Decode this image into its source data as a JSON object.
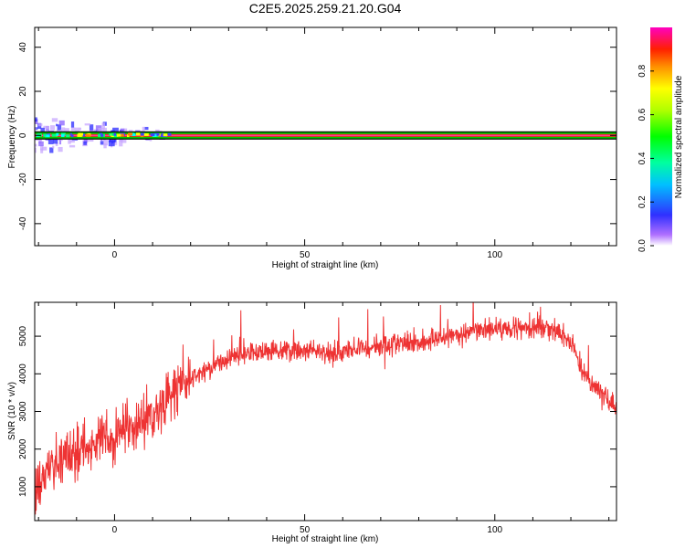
{
  "title": "C2E5.2025.259.21.20.G04",
  "chart_data": [
    {
      "type": "heatmap",
      "xlabel": "Height of straight line (km)",
      "ylabel": "Frequency (Hz)",
      "xlim": [
        -21,
        132
      ],
      "ylim": [
        -50,
        49
      ],
      "xticks": [
        0,
        50,
        100
      ],
      "yticks": [
        -40,
        -20,
        0,
        20,
        40
      ],
      "colorbar": {
        "label": "Normalized spectral amplitude",
        "range": [
          0,
          1
        ],
        "ticks": [
          "0.0",
          "0.2",
          "0.4",
          "0.6",
          "0.8"
        ]
      },
      "ridge": {
        "frequency": 0,
        "x_range": [
          -21,
          132
        ],
        "core_amplitude": 0.95,
        "noise_extent_x": [
          -21,
          14
        ],
        "noise_peak_frequency_spread": 5
      }
    },
    {
      "type": "line",
      "xlabel": "Height of straight line (km)",
      "ylabel": "SNR (10 * v/v)",
      "xlim": [
        -21,
        132
      ],
      "ylim": [
        100,
        5900
      ],
      "xticks": [
        0,
        50,
        100
      ],
      "yticks": [
        1000,
        2000,
        3000,
        4000,
        5000
      ],
      "color": "#ee3333",
      "series": [
        {
          "x": [
            -21,
            -18,
            -15,
            -12,
            -9,
            -6,
            -3,
            0,
            3,
            6,
            9,
            12,
            15,
            18,
            21,
            24,
            27,
            30,
            35,
            40,
            45,
            50,
            55,
            60,
            65,
            70,
            75,
            80,
            85,
            90,
            95,
            100,
            105,
            110,
            115,
            118,
            121,
            123,
            126,
            129,
            132
          ],
          "values": [
            900,
            1300,
            1600,
            1800,
            2000,
            2100,
            2200,
            2300,
            2550,
            2700,
            2900,
            3100,
            3400,
            3700,
            3900,
            4100,
            4250,
            4400,
            4550,
            4600,
            4650,
            4600,
            4550,
            4600,
            4700,
            4750,
            4800,
            4850,
            4950,
            5050,
            5100,
            5200,
            5250,
            5250,
            5200,
            5000,
            4700,
            4000,
            3700,
            3400,
            3100
          ]
        }
      ]
    }
  ]
}
